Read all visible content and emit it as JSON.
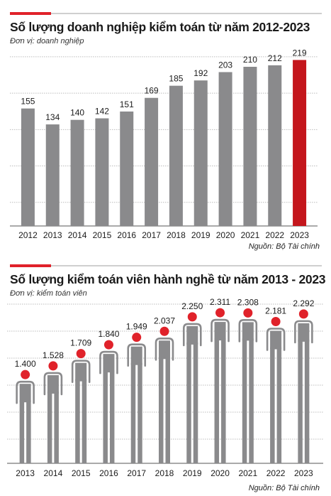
{
  "charts": {
    "chart_data": [
      {
        "type": "bar",
        "title": "Số lượng doanh nghiệp kiểm toán từ năm 2012-2023",
        "unit": "Đơn vị: doanh nghiệp",
        "source": "Nguồn: Bộ Tài chính",
        "categories": [
          "2012",
          "2013",
          "2014",
          "2015",
          "2016",
          "2017",
          "2018",
          "2019",
          "2020",
          "2021",
          "2022",
          "2023"
        ],
        "values": [
          155,
          134,
          140,
          142,
          151,
          169,
          185,
          192,
          203,
          210,
          212,
          219
        ],
        "value_labels": [
          "155",
          "134",
          "140",
          "142",
          "151",
          "169",
          "185",
          "192",
          "203",
          "210",
          "212",
          "219"
        ],
        "ylim": [
          0,
          240
        ],
        "grid": true,
        "colors": {
          "bar": "#8a8a8c",
          "highlight": "#c4161c",
          "grid": "#bdbdbd"
        },
        "highlight_index": 11
      },
      {
        "type": "bar",
        "title": "Số lượng kiểm toán viên hành nghề từ năm 2013 - 2023",
        "unit": "Đơn vị: kiểm toán viên",
        "source": "Nguồn: Bộ Tài chính",
        "categories": [
          "2013",
          "2014",
          "2015",
          "2016",
          "2017",
          "2018",
          "2019",
          "2020",
          "2021",
          "2022",
          "2023"
        ],
        "values": [
          1400,
          1528,
          1709,
          1840,
          1949,
          2037,
          2250,
          2311,
          2308,
          2181,
          2292
        ],
        "value_labels": [
          "1.400",
          "1.528",
          "1.709",
          "1.840",
          "1.949",
          "2.037",
          "2.250",
          "2.311",
          "2.308",
          "2.181",
          "2.292"
        ],
        "ylim": [
          0,
          2500
        ],
        "grid": true,
        "mark_icon": "person-icon",
        "colors": {
          "figure": "#8a8a8c",
          "head": "#e0222a",
          "grid": "#bdbdbd"
        }
      }
    ]
  }
}
